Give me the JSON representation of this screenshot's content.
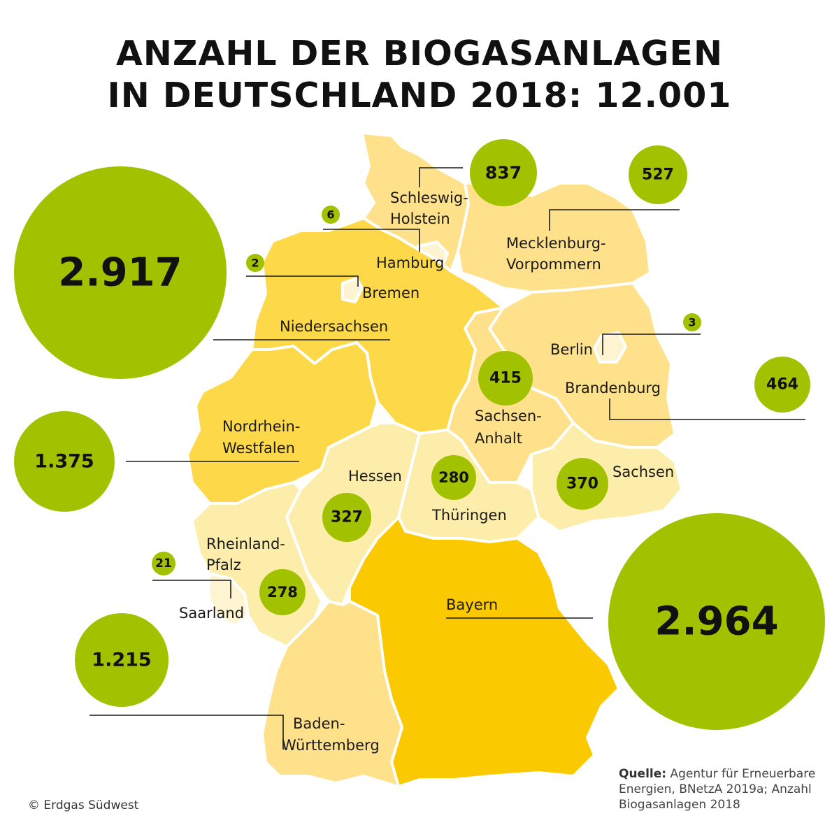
{
  "title": {
    "line1": "ANZAHL DER BIOGASANLAGEN",
    "line2": "IN DEUTSCHLAND 2018: 12.001"
  },
  "colors": {
    "bubble": "#a2c200",
    "shade_lightest": "#fef4d1",
    "shade_light": "#fdedab",
    "shade_medium": "#fee18a",
    "shade_strong": "#fdd94a",
    "shade_darkest": "#fbc900"
  },
  "states": [
    {
      "id": "sh",
      "name_lines": [
        "Schleswig-",
        "Holstein"
      ],
      "value": "837"
    },
    {
      "id": "hh",
      "name_lines": [
        "Hamburg"
      ],
      "value": "6"
    },
    {
      "id": "hb",
      "name_lines": [
        "Bremen"
      ],
      "value": "2"
    },
    {
      "id": "mv",
      "name_lines": [
        "Mecklenburg-",
        "Vorpommern"
      ],
      "value": "527"
    },
    {
      "id": "ni",
      "name_lines": [
        "Niedersachsen"
      ],
      "value": "2.917"
    },
    {
      "id": "be",
      "name_lines": [
        "Berlin"
      ],
      "value": "3"
    },
    {
      "id": "bb",
      "name_lines": [
        "Brandenburg"
      ],
      "value": "464"
    },
    {
      "id": "st",
      "name_lines": [
        "Sachsen-",
        "Anhalt"
      ],
      "value": "415"
    },
    {
      "id": "nw",
      "name_lines": [
        "Nordrhein-",
        "Westfalen"
      ],
      "value": "1.375"
    },
    {
      "id": "he",
      "name_lines": [
        "Hessen"
      ],
      "value": "327"
    },
    {
      "id": "th",
      "name_lines": [
        "Thüringen"
      ],
      "value": "280"
    },
    {
      "id": "sn",
      "name_lines": [
        "Sachsen"
      ],
      "value": "370"
    },
    {
      "id": "rp",
      "name_lines": [
        "Rheinland-",
        "Pfalz"
      ],
      "value": "278"
    },
    {
      "id": "sl",
      "name_lines": [
        "Saarland"
      ],
      "value": "21"
    },
    {
      "id": "by",
      "name_lines": [
        "Bayern"
      ],
      "value": "2.964"
    },
    {
      "id": "bw",
      "name_lines": [
        "Baden-",
        "Württemberg"
      ],
      "value": "1.215"
    }
  ],
  "copyright": "© Erdgas Südwest",
  "source": {
    "label": "Quelle:",
    "text_lines": [
      " Agentur für Erneuerbare",
      "Energien, BNetzA 2019a; Anzahl",
      "Biogasanlagen 2018"
    ]
  }
}
